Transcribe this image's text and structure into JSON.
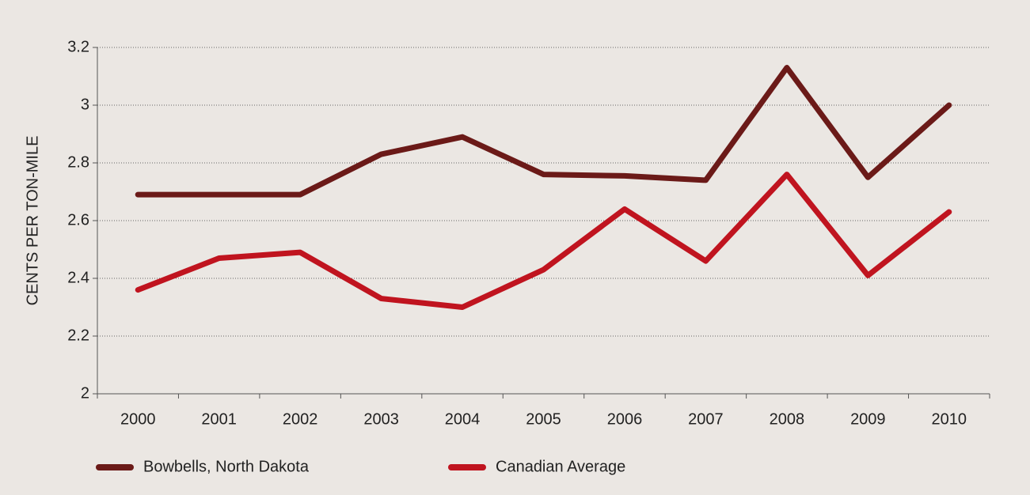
{
  "chart_data": {
    "type": "line",
    "y_label": "CENTS PER TON-MILE",
    "categories": [
      "2000",
      "2001",
      "2002",
      "2003",
      "2004",
      "2005",
      "2006",
      "2007",
      "2008",
      "2009",
      "2010"
    ],
    "series": [
      {
        "name": "Bowbells, North Dakota",
        "color": "#6b1a18",
        "values": [
          2.69,
          2.69,
          2.69,
          2.83,
          2.89,
          2.76,
          2.755,
          2.74,
          3.13,
          2.75,
          3.0
        ]
      },
      {
        "name": "Canadian Average",
        "color": "#c0141f",
        "values": [
          2.36,
          2.47,
          2.49,
          2.33,
          2.3,
          2.43,
          2.64,
          2.46,
          2.76,
          2.41,
          2.63
        ]
      }
    ],
    "ylim": [
      2,
      3.2
    ],
    "yticks": [
      2,
      2.2,
      2.4,
      2.6,
      2.8,
      3,
      3.2
    ],
    "grid": true
  }
}
